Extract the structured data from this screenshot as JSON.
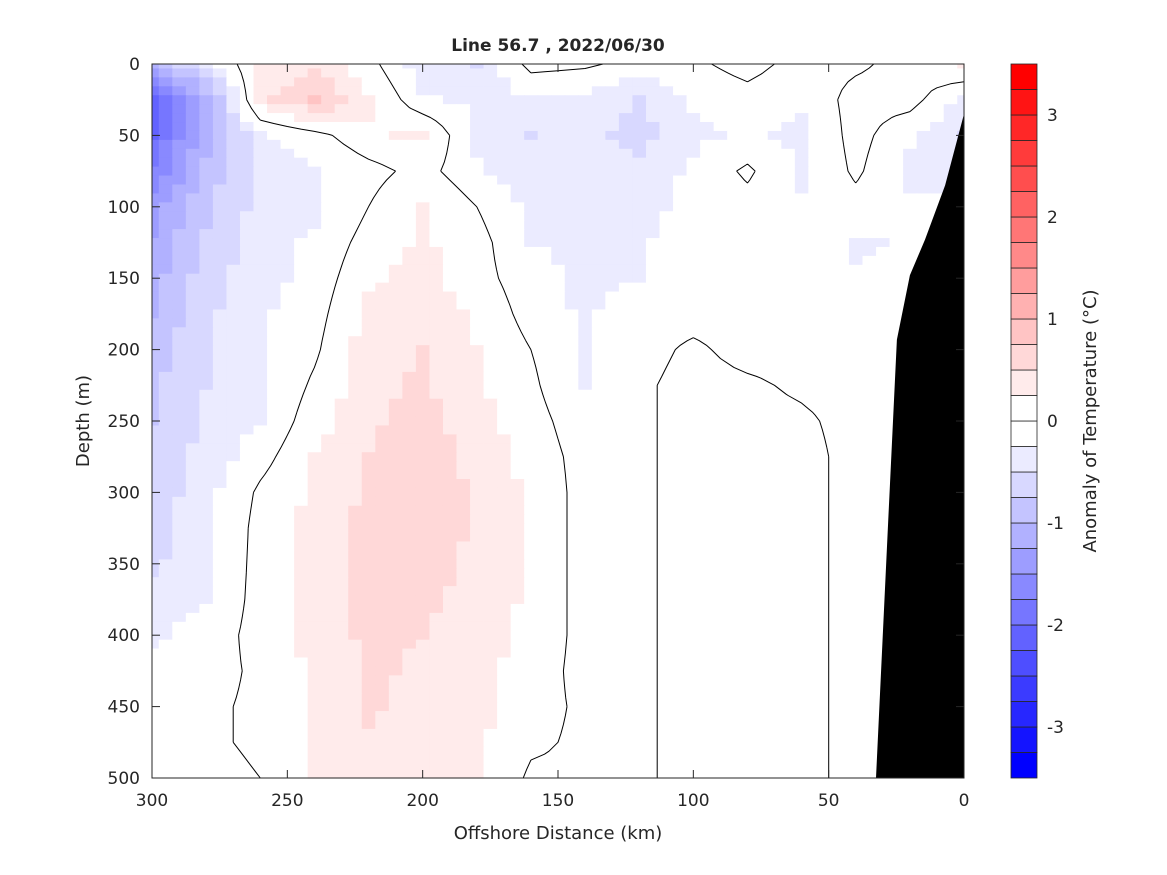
{
  "chart_data": {
    "type": "heatmap",
    "subtype": "filled-contour",
    "title": "Line 56.7 , 2022/06/30",
    "xlabel": "Offshore Distance (km)",
    "ylabel": "Depth (m)",
    "colorbar_label": "Anomaly of Temperature (°C)",
    "xlim": [
      300,
      0
    ],
    "ylim": [
      0,
      500
    ],
    "xticks": [
      300,
      250,
      200,
      150,
      100,
      50,
      0
    ],
    "yticks": [
      0,
      50,
      100,
      150,
      200,
      250,
      300,
      350,
      400,
      450,
      500
    ],
    "clim": [
      -3.5,
      3.5
    ],
    "level_step": 0.25,
    "colorbar_ticks": [
      -3,
      -2,
      -1,
      0,
      1,
      2,
      3
    ],
    "contour_lines": [
      0
    ],
    "colors": {
      "positive": "#ff0000",
      "negative": "#0000ff",
      "zero": "#ffffff",
      "bathymetry": "#000000"
    },
    "x": [
      300,
      280,
      260,
      240,
      220,
      200,
      180,
      160,
      140,
      120,
      100,
      80,
      60,
      40,
      20,
      0
    ],
    "depth": [
      0,
      25,
      50,
      75,
      100,
      125,
      150,
      175,
      200,
      225,
      250,
      275,
      300,
      325,
      350,
      375,
      400,
      425,
      450,
      475,
      500
    ],
    "values": [
      [
        -1.0,
        -0.4,
        0.3,
        0.4,
        0.1,
        -0.4,
        -0.5,
        0.1,
        0.05,
        -0.1,
        -0.05,
        0.1,
        -0.1,
        -0.05,
        0.1,
        0.3
      ],
      [
        -2.2,
        -1.2,
        0.4,
        0.8,
        0.3,
        -0.2,
        -0.3,
        -0.3,
        -0.35,
        -0.5,
        -0.2,
        -0.1,
        -0.2,
        0.1,
        0.1,
        -0.3
      ],
      [
        -2.0,
        -1.1,
        -0.3,
        -0.1,
        0.2,
        0.3,
        -0.3,
        -0.5,
        -0.4,
        -0.6,
        -0.3,
        -0.2,
        -0.3,
        0.1,
        -0.2,
        -0.5
      ],
      [
        -1.7,
        -0.9,
        -0.4,
        -0.3,
        -0.1,
        0.1,
        -0.2,
        -0.4,
        -0.3,
        -0.4,
        -0.2,
        0.05,
        -0.3,
        0.05,
        -0.3,
        -0.3
      ],
      [
        -1.4,
        -0.8,
        -0.4,
        -0.3,
        0.0,
        0.3,
        0.0,
        -0.3,
        -0.3,
        -0.3,
        -0.2,
        -0.1,
        -0.2,
        -0.1,
        -0.2,
        -0.2
      ],
      [
        -1.2,
        -0.7,
        -0.35,
        -0.2,
        0.1,
        0.3,
        0.1,
        -0.25,
        -0.3,
        -0.3,
        -0.1,
        -0.1,
        -0.1,
        -0.3,
        -0.2,
        -0.2
      ],
      [
        -1.1,
        -0.6,
        -0.35,
        -0.15,
        0.2,
        0.35,
        0.1,
        -0.15,
        -0.3,
        -0.25,
        -0.1,
        -0.1,
        -0.1,
        -0.2,
        -0.1,
        -0.1
      ],
      [
        -1.0,
        -0.55,
        -0.3,
        -0.1,
        0.3,
        0.45,
        0.2,
        -0.1,
        -0.3,
        -0.1,
        -0.1,
        -0.1,
        -0.1,
        -0.1,
        -0.1,
        -0.1
      ],
      [
        -0.9,
        -0.5,
        -0.3,
        -0.05,
        0.4,
        0.5,
        0.25,
        0.0,
        -0.25,
        -0.1,
        0.05,
        -0.1,
        -0.1,
        -0.1,
        -0.1,
        -0.1
      ],
      [
        -0.8,
        -0.5,
        -0.3,
        0.05,
        0.4,
        0.55,
        0.3,
        0.05,
        -0.25,
        -0.05,
        0.1,
        0.05,
        -0.05,
        -0.1,
        -0.1,
        -0.1
      ],
      [
        -0.75,
        -0.45,
        -0.25,
        0.15,
        0.45,
        0.6,
        0.35,
        0.1,
        -0.15,
        -0.05,
        0.1,
        0.1,
        0.05,
        -0.1,
        -0.1,
        -0.1
      ],
      [
        -0.7,
        -0.4,
        -0.1,
        0.25,
        0.5,
        0.65,
        0.4,
        0.15,
        -0.1,
        -0.05,
        0.1,
        0.1,
        0.1,
        -0.1,
        -0.1,
        -0.1
      ],
      [
        -0.65,
        -0.35,
        0.05,
        0.3,
        0.55,
        0.7,
        0.45,
        0.2,
        -0.1,
        -0.05,
        0.1,
        0.1,
        0.1,
        -0.1,
        -0.1,
        -0.1
      ],
      [
        -0.6,
        -0.35,
        0.1,
        0.35,
        0.6,
        0.7,
        0.45,
        0.2,
        -0.1,
        -0.05,
        0.1,
        0.1,
        0.1,
        -0.1,
        -0.1,
        -0.1
      ],
      [
        -0.55,
        -0.3,
        0.1,
        0.35,
        0.6,
        0.65,
        0.4,
        0.2,
        -0.1,
        -0.05,
        0.1,
        0.1,
        0.1,
        -0.1,
        -0.1,
        -0.1
      ],
      [
        -0.4,
        -0.25,
        0.1,
        0.35,
        0.55,
        0.55,
        0.4,
        0.2,
        -0.1,
        -0.05,
        0.1,
        0.1,
        0.1,
        -0.1,
        -0.1,
        -0.1
      ],
      [
        -0.3,
        -0.15,
        0.1,
        0.35,
        0.55,
        0.5,
        0.35,
        0.2,
        -0.1,
        -0.05,
        0.1,
        0.1,
        0.1,
        -0.1,
        -0.1,
        -0.1
      ],
      [
        -0.15,
        -0.1,
        0.05,
        0.3,
        0.55,
        0.45,
        0.3,
        0.15,
        -0.1,
        -0.05,
        0.1,
        0.1,
        0.1,
        -0.1,
        -0.1,
        -0.1
      ],
      [
        -0.1,
        -0.05,
        0.05,
        0.3,
        0.55,
        0.4,
        0.35,
        0.1,
        -0.05,
        -0.05,
        0.1,
        0.1,
        0.1,
        -0.1,
        -0.1,
        -0.1
      ],
      [
        -0.1,
        -0.05,
        0.05,
        0.3,
        0.45,
        0.35,
        0.3,
        0.05,
        -0.05,
        -0.05,
        0.1,
        0.1,
        0.1,
        -0.1,
        -0.1,
        -0.1
      ],
      [
        -0.1,
        -0.1,
        0.0,
        0.25,
        0.35,
        0.3,
        0.3,
        -0.05,
        -0.05,
        -0.05,
        0.1,
        0.1,
        0.1,
        -0.1,
        -0.1,
        -0.1
      ]
    ],
    "bathymetry": [
      [
        0,
        35
      ],
      [
        7,
        85
      ],
      [
        14.4,
        123
      ],
      [
        20,
        148
      ],
      [
        24.8,
        193
      ],
      [
        28,
        320
      ],
      [
        32.5,
        500
      ],
      [
        0,
        500
      ]
    ]
  }
}
